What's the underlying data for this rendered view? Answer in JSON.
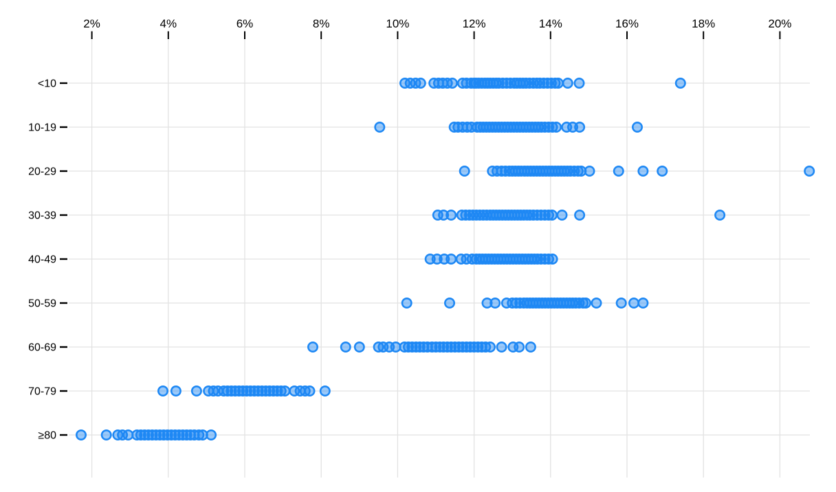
{
  "chart_data": {
    "type": "scatter",
    "subtype": "horizontal-strip-dot-plot",
    "title": "",
    "legend": "none",
    "x_axis": {
      "position": "top",
      "unit": "percent",
      "ticks": [
        2,
        4,
        6,
        8,
        10,
        12,
        14,
        16,
        18,
        20
      ],
      "tick_labels": [
        "2%",
        "4%",
        "6%",
        "8%",
        "10%",
        "12%",
        "14%",
        "16%",
        "18%",
        "20%"
      ],
      "range": [
        1.4,
        20.8
      ],
      "grid": true
    },
    "y_axis": {
      "categories": [
        "<10",
        "10-19",
        "20-29",
        "30-39",
        "40-49",
        "50-59",
        "60-69",
        "70-79",
        "≥80"
      ],
      "grid": true
    },
    "marker": {
      "shape": "circle",
      "color": "#1e88f4",
      "fill_opacity": 0.45,
      "radius_px": 6.7,
      "stroke_width_px": 2.6
    },
    "colors": {
      "grid": "#e2e2e2",
      "tick": "#000000",
      "label": "#000000",
      "background": "#ffffff"
    },
    "series": [
      {
        "category": "<10",
        "values": [
          10.19,
          10.33,
          10.47,
          10.6,
          10.95,
          11.07,
          11.18,
          11.3,
          11.43,
          11.7,
          11.8,
          11.92,
          12.0,
          12.05,
          12.12,
          12.2,
          12.28,
          12.35,
          12.42,
          12.5,
          12.58,
          12.65,
          12.75,
          12.85,
          12.95,
          13.05,
          13.12,
          13.2,
          13.28,
          13.36,
          13.45,
          13.55,
          13.64,
          13.72,
          13.82,
          13.92,
          14.02,
          14.12,
          14.2,
          14.45,
          14.75,
          17.4
        ]
      },
      {
        "category": "10-19",
        "values": [
          9.53,
          11.48,
          11.58,
          11.7,
          11.82,
          11.93,
          12.08,
          12.16,
          12.24,
          12.32,
          12.4,
          12.48,
          12.56,
          12.64,
          12.72,
          12.8,
          12.88,
          12.96,
          13.04,
          13.12,
          13.2,
          13.28,
          13.36,
          13.44,
          13.52,
          13.6,
          13.68,
          13.76,
          13.85,
          13.95,
          14.05,
          14.15,
          14.42,
          14.58,
          14.76,
          16.27
        ]
      },
      {
        "category": "20-29",
        "values": [
          11.75,
          12.48,
          12.6,
          12.72,
          12.82,
          12.92,
          13.0,
          13.08,
          13.16,
          13.24,
          13.32,
          13.4,
          13.48,
          13.56,
          13.64,
          13.72,
          13.8,
          13.88,
          13.96,
          14.04,
          14.12,
          14.2,
          14.28,
          14.36,
          14.44,
          14.52,
          14.62,
          14.72,
          14.8,
          15.02,
          15.78,
          16.42,
          16.92,
          20.77
        ]
      },
      {
        "category": "30-39",
        "values": [
          11.05,
          11.2,
          11.4,
          11.68,
          11.78,
          11.88,
          11.97,
          12.06,
          12.15,
          12.24,
          12.33,
          12.42,
          12.5,
          12.58,
          12.66,
          12.74,
          12.82,
          12.9,
          12.98,
          13.06,
          13.14,
          13.22,
          13.3,
          13.38,
          13.46,
          13.55,
          13.65,
          13.75,
          13.85,
          13.95,
          14.04,
          14.3,
          14.76,
          18.43
        ]
      },
      {
        "category": "40-49",
        "values": [
          10.85,
          11.03,
          11.22,
          11.4,
          11.66,
          11.8,
          11.95,
          12.06,
          12.14,
          12.22,
          12.3,
          12.38,
          12.46,
          12.54,
          12.62,
          12.7,
          12.78,
          12.86,
          12.94,
          13.02,
          13.1,
          13.18,
          13.26,
          13.34,
          13.42,
          13.5,
          13.58,
          13.66,
          13.75,
          13.85,
          13.95,
          14.05
        ]
      },
      {
        "category": "50-59",
        "values": [
          10.24,
          11.36,
          12.34,
          12.55,
          12.85,
          13.0,
          13.1,
          13.2,
          13.3,
          13.38,
          13.46,
          13.54,
          13.62,
          13.7,
          13.78,
          13.86,
          13.94,
          14.02,
          14.1,
          14.18,
          14.26,
          14.34,
          14.42,
          14.5,
          14.58,
          14.66,
          14.75,
          14.85,
          14.92,
          15.2,
          15.85,
          16.18,
          16.42
        ]
      },
      {
        "category": "60-69",
        "values": [
          7.78,
          8.64,
          9.0,
          9.5,
          9.62,
          9.78,
          9.95,
          10.18,
          10.28,
          10.38,
          10.48,
          10.58,
          10.68,
          10.78,
          10.9,
          11.0,
          11.1,
          11.2,
          11.3,
          11.4,
          11.5,
          11.6,
          11.7,
          11.8,
          11.9,
          12.0,
          12.1,
          12.2,
          12.3,
          12.42,
          12.72,
          13.02,
          13.18,
          13.48
        ]
      },
      {
        "category": "70-79",
        "values": [
          3.86,
          4.2,
          4.74,
          5.05,
          5.18,
          5.3,
          5.45,
          5.55,
          5.65,
          5.75,
          5.85,
          5.95,
          6.05,
          6.15,
          6.25,
          6.35,
          6.45,
          6.55,
          6.65,
          6.75,
          6.85,
          6.95,
          7.05,
          7.3,
          7.45,
          7.58,
          7.7,
          8.1
        ]
      },
      {
        "category": "≥80",
        "values": [
          1.72,
          2.38,
          2.68,
          2.8,
          2.95,
          3.18,
          3.28,
          3.38,
          3.48,
          3.58,
          3.68,
          3.78,
          3.88,
          3.98,
          4.08,
          4.18,
          4.28,
          4.38,
          4.48,
          4.58,
          4.68,
          4.8,
          4.9,
          5.12
        ]
      }
    ]
  }
}
